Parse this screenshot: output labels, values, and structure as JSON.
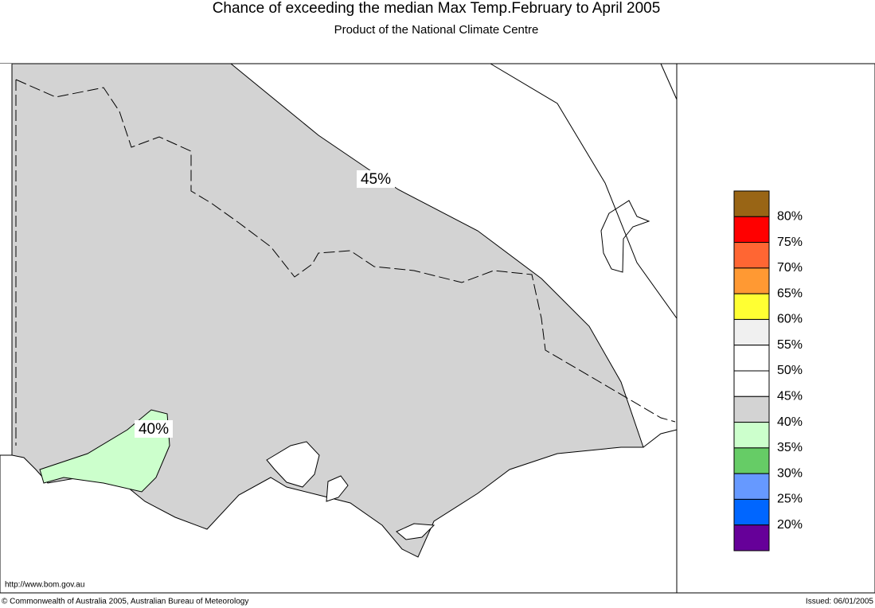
{
  "header": {
    "title": "Chance of exceeding the median Max Temp.February to April 2005",
    "subtitle": "Product of the National Climate Centre"
  },
  "map": {
    "contour_labels": [
      "45%",
      "40%"
    ]
  },
  "legend": {
    "labels": [
      "80%",
      "75%",
      "70%",
      "65%",
      "60%",
      "55%",
      "50%",
      "45%",
      "40%",
      "35%",
      "30%",
      "25%",
      "20%"
    ],
    "colors": [
      "#996515",
      "#ff0000",
      "#ff6633",
      "#ff9933",
      "#ffff33",
      "#f0f0f0",
      "#ffffff",
      "#ffffff",
      "#d3d3d3",
      "#ccffcc",
      "#66cc66",
      "#6699ff",
      "#0066ff",
      "#660099"
    ]
  },
  "footer": {
    "url": "http://www.bom.gov.au",
    "copyright": "© Commonwealth of Australia 2005, Australian Bureau of Meteorology",
    "issued": "Issued: 06/01/2005"
  }
}
